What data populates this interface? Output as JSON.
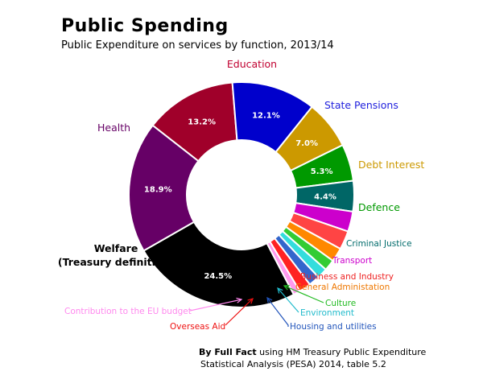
{
  "title": "Public Spending",
  "subtitle": "Public Expenditure on services by function, 2013/14",
  "credit": {
    "bold": "By Full Fact",
    "line1_rest": "using HM Treasury Public Expenditure",
    "line2": "Statistical Analysis (PESA) 2014, table 5.2"
  },
  "chart_data": {
    "type": "pie",
    "style": "donut",
    "title": "Public Spending",
    "subtitle": "Public Expenditure on services by function, 2013/14",
    "slices": [
      {
        "label": "Education",
        "value": 13.2,
        "value_label": "13.2%",
        "color": "#a0002a",
        "label_color": "#c00030"
      },
      {
        "label": "State Pensions",
        "value": 12.1,
        "value_label": "12.1%",
        "color": "#0000cc",
        "label_color": "#2020dd"
      },
      {
        "label": "Debt Interest",
        "value": 7.0,
        "value_label": "7.0%",
        "color": "#cc9900",
        "label_color": "#cc9900"
      },
      {
        "label": "Defence",
        "value": 5.3,
        "value_label": "5.3%",
        "color": "#009900",
        "label_color": "#009900"
      },
      {
        "label": "Criminal Justice",
        "value": 4.4,
        "value_label": "4.4%",
        "color": "#006666",
        "label_color": "#006b6b"
      },
      {
        "label": "Transport",
        "value": 2.9,
        "value_label": "",
        "color": "#cc00cc",
        "label_color": "#cc00cc"
      },
      {
        "label": "Business and Industry",
        "value": 2.7,
        "value_label": "",
        "color": "#ff4444",
        "label_color": "#ee2222"
      },
      {
        "label": "General Administation",
        "value": 2.0,
        "value_label": "",
        "color": "#ff8800",
        "label_color": "#ee7700"
      },
      {
        "label": "Culture",
        "value": 1.6,
        "value_label": "",
        "color": "#33cc33",
        "label_color": "#22bb22"
      },
      {
        "label": "Environment",
        "value": 1.5,
        "value_label": "",
        "color": "#33dddd",
        "label_color": "#22bbcc"
      },
      {
        "label": "Housing and utilities",
        "value": 1.6,
        "value_label": "",
        "color": "#3366cc",
        "label_color": "#2255bb"
      },
      {
        "label": "Overseas Aid",
        "value": 1.7,
        "value_label": "",
        "color": "#ff2222",
        "label_color": "#ee1111"
      },
      {
        "label": "Contribution to the EU budget",
        "value": 1.0,
        "value_label": "",
        "color": "#ff99ee",
        "label_color": "#ff88ee"
      },
      {
        "label": "Welfare (Treasury definition)",
        "value": 24.5,
        "value_label": "24.5%",
        "color": "#000000",
        "label_color": "#000000"
      },
      {
        "label": "Health",
        "value": 18.9,
        "value_label": "18.9%",
        "color": "#660066",
        "label_color": "#660066"
      }
    ]
  }
}
